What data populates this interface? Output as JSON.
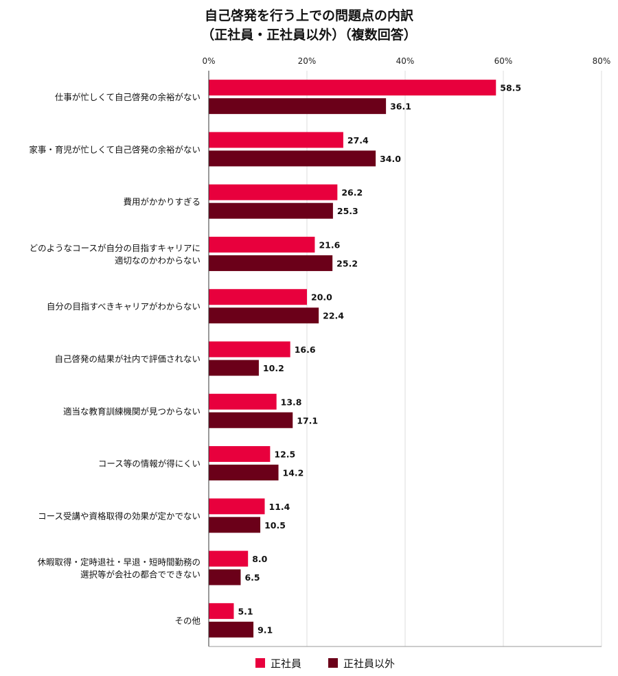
{
  "chart_data": {
    "type": "bar",
    "orientation": "horizontal",
    "title": "自己啓発を行う上での問題点の内訳",
    "subtitle": "（正社員・正社員以外）（複数回答）",
    "categories": [
      "仕事が忙しくて自己啓発の余裕がない",
      "家事・育児が忙しくて自己啓発の余裕がない",
      "費用がかかりすぎる",
      "どのようなコースが自分の目指すキャリアに適切なのかわからない",
      "自分の目指すべきキャリアがわからない",
      "自己啓発の結果が社内で評価されない",
      "適当な教育訓練機関が見つからない",
      "コース等の情報が得にくい",
      "コース受講や資格取得の効果が定かでない",
      "休暇取得・定時退社・早退・短時間勤務の選択等が会社の都合でできない",
      "その他"
    ],
    "category_lines": [
      [
        "仕事が忙しくて自己啓発の余裕がない"
      ],
      [
        "家事・育児が忙しくて自己啓発の余裕がない"
      ],
      [
        "費用がかかりすぎる"
      ],
      [
        "どのようなコースが自分の目指すキャリアに",
        "適切なのかわからない"
      ],
      [
        "自分の目指すべきキャリアがわからない"
      ],
      [
        "自己啓発の結果が社内で評価されない"
      ],
      [
        "適当な教育訓練機関が見つからない"
      ],
      [
        "コース等の情報が得にくい"
      ],
      [
        "コース受講や資格取得の効果が定かでない"
      ],
      [
        "休暇取得・定時退社・早退・短時間勤務の",
        "選択等が会社の都合でできない"
      ],
      [
        "その他"
      ]
    ],
    "series": [
      {
        "name": "正社員",
        "color": "#e8003d",
        "values": [
          58.5,
          27.4,
          26.2,
          21.6,
          20.0,
          16.6,
          13.8,
          12.5,
          11.4,
          8.0,
          5.1
        ],
        "labels": [
          "58.5",
          "27.4",
          "26.2",
          "21.6",
          "20.0",
          "16.6",
          "13.8",
          "12.5",
          "11.4",
          "8.0",
          "5.1"
        ]
      },
      {
        "name": "正社員以外",
        "color": "#6b0019",
        "values": [
          36.1,
          34.0,
          25.3,
          25.2,
          22.4,
          10.2,
          17.1,
          14.2,
          10.5,
          6.5,
          9.1
        ],
        "labels": [
          "36.1",
          "34.0",
          "25.3",
          "25.2",
          "22.4",
          "10.2",
          "17.1",
          "14.2",
          "10.5",
          "6.5",
          "9.1"
        ]
      }
    ],
    "xlim": [
      0,
      80
    ],
    "xticks": [
      0,
      20,
      40,
      60,
      80
    ],
    "xtick_labels": [
      "0%",
      "20%",
      "40%",
      "60%",
      "80%"
    ],
    "grid": true,
    "legend_position": "bottom"
  }
}
